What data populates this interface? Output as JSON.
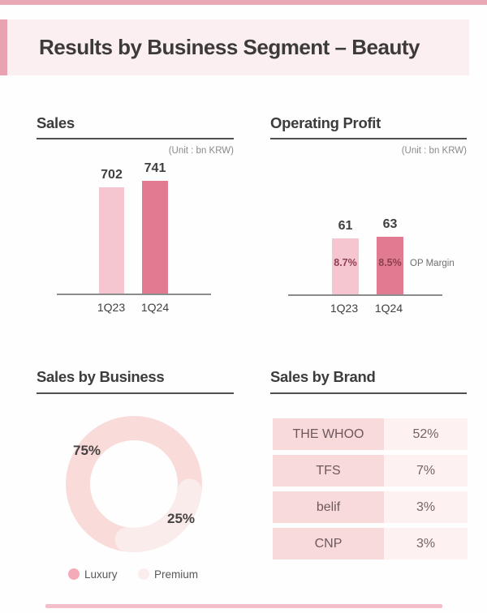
{
  "header": {
    "title": "Results by Business Segment – Beauty"
  },
  "colors": {
    "bar_light": "#f6c6d0",
    "bar_dark": "#e07b91",
    "donut_luxury": "#f9dbda",
    "donut_premium": "#faeceb",
    "legend_luxury_dot": "#f3abb9",
    "legend_premium_dot": "#fceded",
    "table_brand_bg": "#f9dada",
    "table_share_bg": "#fdf2f1",
    "accent_pink": "#e9a2b2"
  },
  "sales_panel": {
    "title": "Sales",
    "unit_label": "(Unit : bn KRW)"
  },
  "op_panel": {
    "title": "Operating Profit",
    "unit_label": "(Unit : bn KRW)",
    "op_margin_label": "OP Margin"
  },
  "business_panel": {
    "title": "Sales by Business",
    "legend": [
      {
        "label": "Luxury"
      },
      {
        "label": "Premium"
      }
    ]
  },
  "brand_panel": {
    "title": "Sales by Brand"
  },
  "chart_data": [
    {
      "type": "bar",
      "title": "Sales",
      "unit": "bn KRW",
      "categories": [
        "1Q23",
        "1Q24"
      ],
      "values": [
        702,
        741
      ],
      "ylim": [
        0,
        800
      ],
      "colors": [
        "#f6c6d0",
        "#e07b91"
      ]
    },
    {
      "type": "bar",
      "title": "Operating Profit",
      "unit": "bn KRW",
      "categories": [
        "1Q23",
        "1Q24"
      ],
      "values": [
        61,
        63
      ],
      "op_margin": [
        "8.7%",
        "8.5%"
      ],
      "ylim": [
        0,
        80
      ],
      "colors": [
        "#f6c6d0",
        "#e07b91"
      ]
    },
    {
      "type": "pie",
      "title": "Sales by Business",
      "categories": [
        "Luxury",
        "Premium"
      ],
      "values": [
        75,
        25
      ],
      "labels": [
        "75%",
        "25%"
      ],
      "colors": [
        "#f9dbda",
        "#faeceb"
      ],
      "legend_position": "bottom"
    },
    {
      "type": "table",
      "title": "Sales by Brand",
      "rows": [
        {
          "brand": "THE WHOO",
          "share": "52%"
        },
        {
          "brand": "TFS",
          "share": "7%"
        },
        {
          "brand": "belif",
          "share": "3%"
        },
        {
          "brand": "CNP",
          "share": "3%"
        }
      ]
    }
  ]
}
